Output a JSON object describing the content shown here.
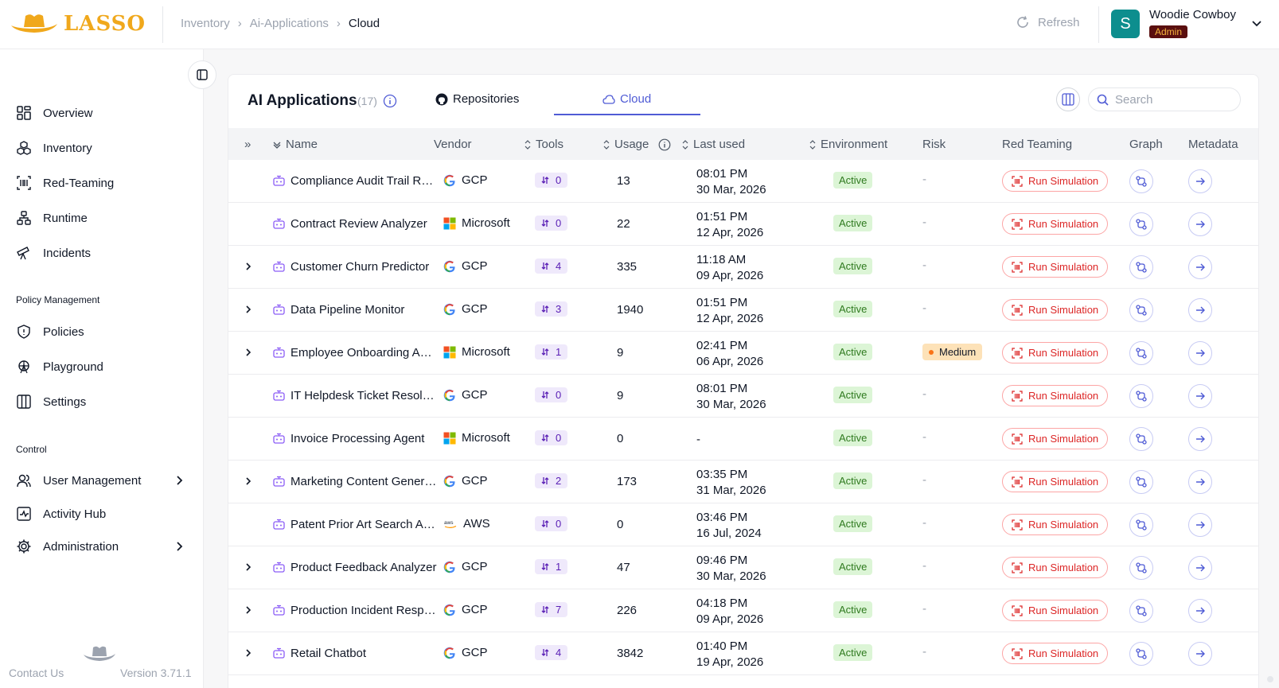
{
  "header": {
    "logo_text": "LASSO",
    "breadcrumbs": [
      "Inventory",
      "Ai-Applications",
      "Cloud"
    ],
    "refresh_label": "Refresh",
    "user": {
      "initial": "S",
      "name": "Woodie Cowboy",
      "role": "Admin"
    }
  },
  "sidebar": {
    "items": [
      {
        "label": "Overview",
        "icon": "grid-icon"
      },
      {
        "label": "Inventory",
        "icon": "cubes-icon"
      },
      {
        "label": "Red-Teaming",
        "icon": "barcode-icon"
      },
      {
        "label": "Runtime",
        "icon": "network-icon"
      },
      {
        "label": "Incidents",
        "icon": "telescope-icon"
      }
    ],
    "policy_section": "Policy Management",
    "policy_items": [
      {
        "label": "Policies",
        "icon": "shield-icon"
      },
      {
        "label": "Playground",
        "icon": "ferris-wheel-icon"
      },
      {
        "label": "Settings",
        "icon": "columns-icon"
      }
    ],
    "control_section": "Control",
    "control_items": [
      {
        "label": "User Management",
        "icon": "users-icon"
      },
      {
        "label": "Activity Hub",
        "icon": "activity-icon"
      },
      {
        "label": "Administration",
        "icon": "gear-icon"
      }
    ],
    "contact_label": "Contact Us",
    "version": "Version 3.71.1"
  },
  "card": {
    "title": "AI Applications",
    "count": "(17)",
    "tabs": [
      {
        "label": "Repositories",
        "icon": "github-icon"
      },
      {
        "label": "Cloud",
        "icon": "cloud-icon"
      }
    ],
    "search_placeholder": "Search"
  },
  "table": {
    "columns": [
      "Name",
      "Vendor",
      "Tools",
      "Usage",
      "Last used",
      "Environment",
      "Risk",
      "Red Teaming",
      "Graph",
      "Metadata"
    ],
    "run_label": "Run Simulation",
    "rows": [
      {
        "expandable": false,
        "name": "Compliance Audit Trail Revi...",
        "vendor": "GCP",
        "tools": "0",
        "usage": "13",
        "time": "08:01 PM",
        "date": "30 Mar, 2026",
        "env": "Active",
        "risk": "-"
      },
      {
        "expandable": false,
        "name": "Contract Review Analyzer",
        "vendor": "Microsoft",
        "tools": "0",
        "usage": "22",
        "time": "01:51 PM",
        "date": "12 Apr, 2026",
        "env": "Active",
        "risk": "-"
      },
      {
        "expandable": true,
        "name": "Customer Churn Predictor",
        "vendor": "GCP",
        "tools": "4",
        "usage": "335",
        "time": "11:18 AM",
        "date": "09 Apr, 2026",
        "env": "Active",
        "risk": "-"
      },
      {
        "expandable": true,
        "name": "Data Pipeline Monitor",
        "vendor": "GCP",
        "tools": "3",
        "usage": "1940",
        "time": "01:51 PM",
        "date": "12 Apr, 2026",
        "env": "Active",
        "risk": "-"
      },
      {
        "expandable": true,
        "name": "Employee Onboarding Ass...",
        "vendor": "Microsoft",
        "tools": "1",
        "usage": "9",
        "time": "02:41 PM",
        "date": "06 Apr, 2026",
        "env": "Active",
        "risk": "Medium"
      },
      {
        "expandable": false,
        "name": "IT Helpdesk Ticket Resolver",
        "vendor": "GCP",
        "tools": "0",
        "usage": "9",
        "time": "08:01 PM",
        "date": "30 Mar, 2026",
        "env": "Active",
        "risk": "-"
      },
      {
        "expandable": false,
        "name": "Invoice Processing Agent",
        "vendor": "Microsoft",
        "tools": "0",
        "usage": "0",
        "time": "-",
        "date": "",
        "env": "Active",
        "risk": "-"
      },
      {
        "expandable": true,
        "name": "Marketing Content Genera...",
        "vendor": "GCP",
        "tools": "2",
        "usage": "173",
        "time": "03:35 PM",
        "date": "31 Mar, 2026",
        "env": "Active",
        "risk": "-"
      },
      {
        "expandable": false,
        "name": "Patent Prior Art Search Age...",
        "vendor": "AWS",
        "tools": "0",
        "usage": "0",
        "time": "03:46 PM",
        "date": "16 Jul, 2024",
        "env": "Active",
        "risk": "-"
      },
      {
        "expandable": true,
        "name": "Product Feedback Analyzer",
        "vendor": "GCP",
        "tools": "1",
        "usage": "47",
        "time": "09:46 PM",
        "date": "30 Mar, 2026",
        "env": "Active",
        "risk": "-"
      },
      {
        "expandable": true,
        "name": "Production Incident Respo...",
        "vendor": "GCP",
        "tools": "7",
        "usage": "226",
        "time": "04:18 PM",
        "date": "09 Apr, 2026",
        "env": "Active",
        "risk": "-"
      },
      {
        "expandable": true,
        "name": "Retail Chatbot",
        "vendor": "GCP",
        "tools": "4",
        "usage": "3842",
        "time": "01:40 PM",
        "date": "19 Apr, 2026",
        "env": "Active",
        "risk": "-"
      }
    ]
  },
  "colors": {
    "brand": "#f0a81c",
    "accent": "#4f5bd5",
    "active_bg": "#dcf5d6",
    "danger": "#dc2626",
    "medium_risk": "#fde2b8"
  }
}
